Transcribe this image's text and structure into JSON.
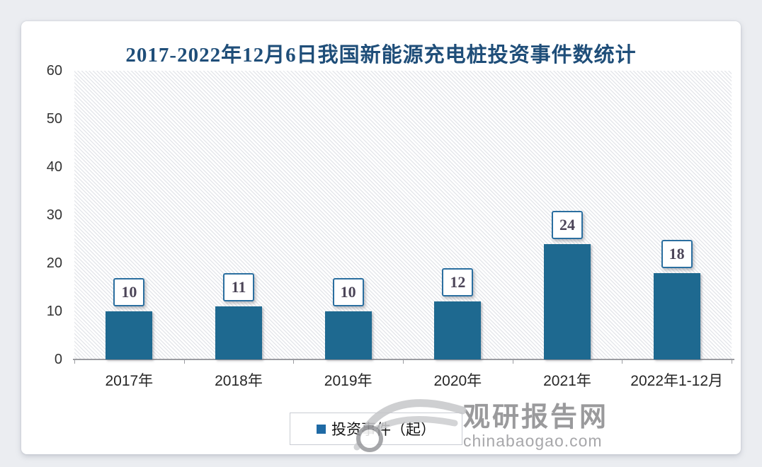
{
  "title": {
    "text": "2017-2022年12月6日我国新能源充电桩投资事件数统计",
    "color": "#1F4E79"
  },
  "chart_data": {
    "type": "bar",
    "title": "2017-2022年12月6日我国新能源充电桩投资事件数统计",
    "categories": [
      "2017年",
      "2018年",
      "2019年",
      "2020年",
      "2021年",
      "2022年1-12月"
    ],
    "series": [
      {
        "name": "投资事件（起）",
        "values": [
          10,
          11,
          10,
          12,
          24,
          18
        ]
      }
    ],
    "xlabel": "",
    "ylabel": "",
    "ylim": [
      0,
      60
    ],
    "yticks": [
      0,
      10,
      20,
      30,
      40,
      50,
      60
    ],
    "grid": false,
    "legend_position": "bottom",
    "plot_background": "diagonal-hatch",
    "bar_color": "#1E6990",
    "value_label_border_color": "#2B6FA0",
    "value_label_text_color": "#4C4558",
    "title_color": "#1F4E79"
  },
  "legend": {
    "label": "投资事件（起）",
    "swatch_color": "#1F6AA5"
  },
  "watermark": {
    "site_name": "观研报告网",
    "site_url": "chinabaogao.com"
  }
}
